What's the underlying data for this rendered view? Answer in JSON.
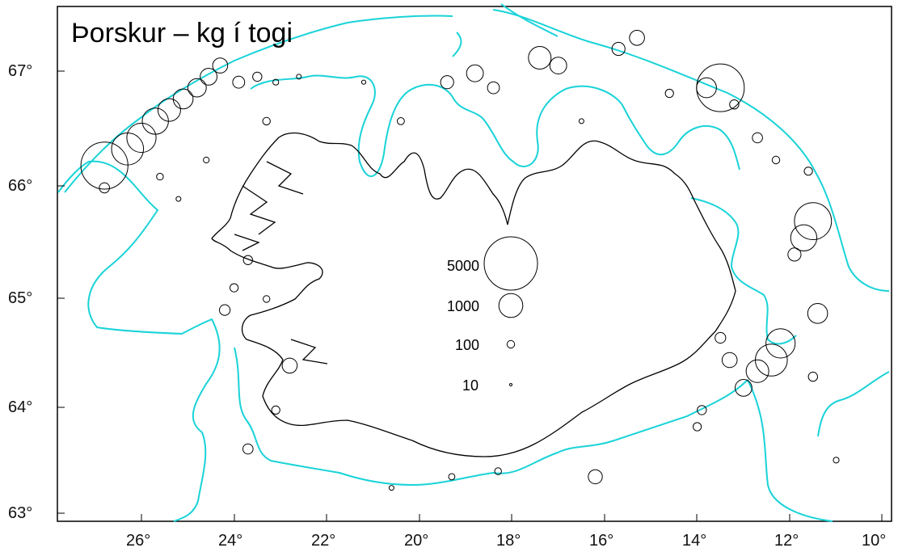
{
  "title": "Þorskur – kg í togi",
  "axes": {
    "lon_ticks": [
      "26°",
      "24°",
      "22°",
      "20°",
      "18°",
      "16°",
      "14°",
      "12°",
      "10°"
    ],
    "lat_ticks": [
      "67°",
      "66°",
      "65°",
      "64°",
      "63°"
    ],
    "lon_range": [
      -27.8,
      -9.7
    ],
    "lat_range": [
      62.9,
      67.5
    ]
  },
  "legend": {
    "entries": [
      {
        "label": "5000",
        "value": 5000
      },
      {
        "label": "1000",
        "value": 1000
      },
      {
        "label": "100",
        "value": 100
      },
      {
        "label": "10",
        "value": 10
      }
    ]
  },
  "colors": {
    "depth_contour": "#19d3d8",
    "coastline": "#000000",
    "circles": "#000000"
  },
  "map_data": {
    "type": "bubble-map",
    "variable": "kg per tow",
    "stations": [
      {
        "lon": -26.8,
        "lat": 66.15,
        "kg": 3900
      },
      {
        "lon": -26.3,
        "lat": 66.3,
        "kg": 1800
      },
      {
        "lon": -26.0,
        "lat": 66.4,
        "kg": 1500
      },
      {
        "lon": -25.7,
        "lat": 66.55,
        "kg": 1200
      },
      {
        "lon": -25.4,
        "lat": 66.65,
        "kg": 900
      },
      {
        "lon": -25.1,
        "lat": 66.75,
        "kg": 700
      },
      {
        "lon": -24.8,
        "lat": 66.85,
        "kg": 600
      },
      {
        "lon": -24.55,
        "lat": 66.95,
        "kg": 500
      },
      {
        "lon": -24.3,
        "lat": 67.05,
        "kg": 400
      },
      {
        "lon": -26.8,
        "lat": 65.95,
        "kg": 180
      },
      {
        "lon": -25.6,
        "lat": 66.05,
        "kg": 80
      },
      {
        "lon": -25.2,
        "lat": 65.85,
        "kg": 40
      },
      {
        "lon": -24.6,
        "lat": 66.2,
        "kg": 60
      },
      {
        "lon": -23.9,
        "lat": 66.9,
        "kg": 250
      },
      {
        "lon": -23.5,
        "lat": 66.95,
        "kg": 150
      },
      {
        "lon": -23.3,
        "lat": 66.55,
        "kg": 100
      },
      {
        "lon": -23.1,
        "lat": 66.9,
        "kg": 60
      },
      {
        "lon": -22.6,
        "lat": 66.95,
        "kg": 40
      },
      {
        "lon": -21.2,
        "lat": 66.9,
        "kg": 30
      },
      {
        "lon": -20.4,
        "lat": 66.55,
        "kg": 90
      },
      {
        "lon": -19.4,
        "lat": 66.9,
        "kg": 300
      },
      {
        "lon": -18.8,
        "lat": 66.98,
        "kg": 500
      },
      {
        "lon": -18.4,
        "lat": 66.85,
        "kg": 250
      },
      {
        "lon": -17.4,
        "lat": 67.12,
        "kg": 900
      },
      {
        "lon": -17.0,
        "lat": 67.05,
        "kg": 500
      },
      {
        "lon": -16.5,
        "lat": 66.55,
        "kg": 40
      },
      {
        "lon": -15.7,
        "lat": 67.2,
        "kg": 300
      },
      {
        "lon": -15.3,
        "lat": 67.3,
        "kg": 400
      },
      {
        "lon": -14.6,
        "lat": 66.8,
        "kg": 120
      },
      {
        "lon": -13.8,
        "lat": 66.85,
        "kg": 700
      },
      {
        "lon": -13.5,
        "lat": 66.85,
        "kg": 4000
      },
      {
        "lon": -13.2,
        "lat": 66.7,
        "kg": 150
      },
      {
        "lon": -12.7,
        "lat": 66.4,
        "kg": 180
      },
      {
        "lon": -12.3,
        "lat": 66.2,
        "kg": 100
      },
      {
        "lon": -11.6,
        "lat": 66.1,
        "kg": 120
      },
      {
        "lon": -11.5,
        "lat": 65.65,
        "kg": 2400
      },
      {
        "lon": -11.7,
        "lat": 65.5,
        "kg": 1200
      },
      {
        "lon": -11.9,
        "lat": 65.35,
        "kg": 300
      },
      {
        "lon": -11.4,
        "lat": 64.82,
        "kg": 700
      },
      {
        "lon": -11.5,
        "lat": 64.25,
        "kg": 150
      },
      {
        "lon": -12.2,
        "lat": 64.55,
        "kg": 1500
      },
      {
        "lon": -12.4,
        "lat": 64.4,
        "kg": 1800
      },
      {
        "lon": -12.7,
        "lat": 64.3,
        "kg": 900
      },
      {
        "lon": -13.0,
        "lat": 64.15,
        "kg": 500
      },
      {
        "lon": -13.3,
        "lat": 64.4,
        "kg": 400
      },
      {
        "lon": -13.5,
        "lat": 64.6,
        "kg": 200
      },
      {
        "lon": -13.9,
        "lat": 63.95,
        "kg": 150
      },
      {
        "lon": -14.0,
        "lat": 63.8,
        "kg": 120
      },
      {
        "lon": -16.2,
        "lat": 63.35,
        "kg": 350
      },
      {
        "lon": -18.3,
        "lat": 63.4,
        "kg": 80
      },
      {
        "lon": -19.3,
        "lat": 63.35,
        "kg": 70
      },
      {
        "lon": -20.6,
        "lat": 63.25,
        "kg": 40
      },
      {
        "lon": -22.8,
        "lat": 64.35,
        "kg": 400
      },
      {
        "lon": -23.7,
        "lat": 63.6,
        "kg": 180
      },
      {
        "lon": -24.0,
        "lat": 65.05,
        "kg": 120
      },
      {
        "lon": -23.7,
        "lat": 65.3,
        "kg": 150
      },
      {
        "lon": -23.3,
        "lat": 64.95,
        "kg": 80
      },
      {
        "lon": -24.2,
        "lat": 64.85,
        "kg": 200
      },
      {
        "lon": -23.1,
        "lat": 63.95,
        "kg": 120
      },
      {
        "lon": -11.0,
        "lat": 63.5,
        "kg": 60
      }
    ]
  }
}
